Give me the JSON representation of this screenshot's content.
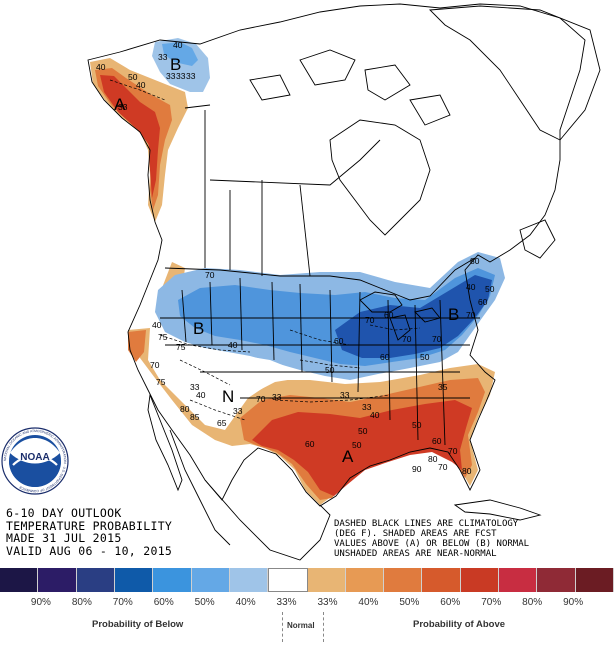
{
  "map": {
    "letters": {
      "below": "B",
      "above": "A",
      "normal": "N"
    },
    "contour_labels": [
      "40",
      "33",
      "33",
      "33",
      "33",
      "50",
      "40",
      "33",
      "70",
      "40",
      "50",
      "60",
      "70",
      "70",
      "50",
      "40",
      "50",
      "33",
      "60",
      "80",
      "70",
      "60",
      "40",
      "33",
      "50",
      "60",
      "70",
      "80",
      "70",
      "80",
      "90",
      "75",
      "70",
      "75",
      "33",
      "40",
      "80",
      "70",
      "75",
      "85",
      "40",
      "50",
      "60",
      "70",
      "40",
      "33",
      "65",
      "60",
      "50",
      "33",
      "35"
    ],
    "colors": {
      "below_light": "#8db8e4",
      "below_mid": "#4f95dc",
      "below_dark": "#1f54ad",
      "above_light": "#e8b574",
      "above_mid": "#e07b3e",
      "above_dark": "#cf3a24"
    }
  },
  "title_block": {
    "line1": "6-10 DAY OUTLOOK",
    "line2": "TEMPERATURE PROBABILITY",
    "line3": "MADE  31 JUL 2015",
    "line4": "VALID  AUG 06 - 10, 2015"
  },
  "notes": {
    "line1": "DASHED BLACK LINES ARE CLIMATOLOGY",
    "line2": "(DEG F). SHADED AREAS ARE FCST",
    "line3": "VALUES ABOVE (A) OR BELOW (B) NORMAL",
    "line4": "UNSHADED AREAS ARE NEAR-NORMAL"
  },
  "logo": {
    "text": "NOAA",
    "ring_text": "NATIONAL OCEANIC AND ATMOSPHERIC ADMINISTRATION · U.S. DEPARTMENT OF COMMERCE"
  },
  "legend": {
    "swatches": [
      {
        "color": "#1c1646"
      },
      {
        "color": "#2c1c66"
      },
      {
        "color": "#2a3e83"
      },
      {
        "color": "#0f5aa9"
      },
      {
        "color": "#3b94de"
      },
      {
        "color": "#64a8e6"
      },
      {
        "color": "#9fc4e8"
      },
      {
        "color": "#ffffff"
      },
      {
        "color": "#e8b574"
      },
      {
        "color": "#e79a54"
      },
      {
        "color": "#e07b3e"
      },
      {
        "color": "#d65a2c"
      },
      {
        "color": "#c93a24"
      },
      {
        "color": "#c82d41"
      },
      {
        "color": "#8f2a36"
      },
      {
        "color": "#6b1c23"
      }
    ],
    "labels": [
      "90%",
      "80%",
      "70%",
      "60%",
      "50%",
      "40%",
      "33%",
      "33%",
      "40%",
      "50%",
      "60%",
      "70%",
      "80%",
      "90%"
    ],
    "caption_below": "Probability of Below",
    "caption_normal": "Normal",
    "caption_above": "Probability of Above"
  }
}
